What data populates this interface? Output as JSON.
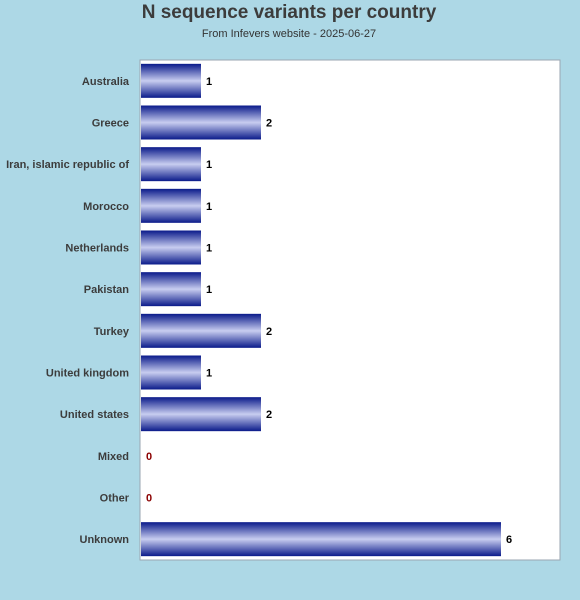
{
  "chart_data": {
    "type": "bar",
    "orientation": "horizontal",
    "title": "N sequence variants per country",
    "subtitle": "From Infevers website - 2025-06-27",
    "categories": [
      "Australia",
      "Greece",
      "Iran, islamic republic of",
      "Morocco",
      "Netherlands",
      "Pakistan",
      "Turkey",
      "United kingdom",
      "United states",
      "Mixed",
      "Other",
      "Unknown"
    ],
    "values": [
      1,
      2,
      1,
      1,
      1,
      1,
      2,
      1,
      2,
      0,
      0,
      6
    ],
    "xlim": [
      0,
      7
    ],
    "xlabel": "",
    "ylabel": "",
    "grid": false,
    "legend": "none",
    "colors": {
      "background": "#add8e6",
      "plot_area": "#ffffff",
      "bar_dark": "#0a1a8a",
      "bar_light": "#c8cdf0",
      "zero_label": "#8b0000",
      "value_label": "#000000",
      "category_label": "#3c3c3c",
      "title": "#3c3c3c"
    }
  }
}
